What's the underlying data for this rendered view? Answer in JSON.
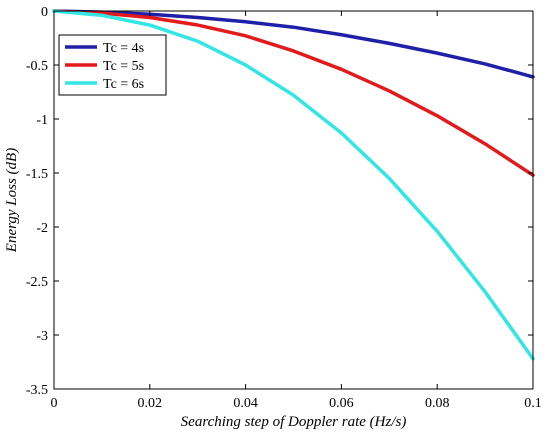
{
  "chart_data": {
    "type": "line",
    "title": "",
    "xlabel": "Searching step of Doppler rate  (Hz/s)",
    "ylabel": "Energy Loss (dB)",
    "xlim": [
      0,
      0.1
    ],
    "ylim": [
      -3.5,
      0
    ],
    "xticks": [
      0,
      0.02,
      0.04,
      0.06,
      0.08,
      0.1
    ],
    "xtick_labels": [
      "0",
      "0.02",
      "0.04",
      "0.06",
      "0.08",
      "0.1"
    ],
    "yticks": [
      0,
      -0.5,
      -1,
      -1.5,
      -2,
      -2.5,
      -3,
      -3.5
    ],
    "ytick_labels": [
      "0",
      "-0.5",
      "-1",
      "-1.5",
      "-2",
      "-2.5",
      "-3",
      "-3.5"
    ],
    "grid": false,
    "legend_position": "top-left",
    "x": [
      0,
      0.01,
      0.02,
      0.03,
      0.04,
      0.05,
      0.06,
      0.07,
      0.08,
      0.09,
      0.1
    ],
    "series": [
      {
        "name": "Tc = 4s",
        "color": "#1f1fa8",
        "values": [
          0,
          -0.01,
          -0.03,
          -0.06,
          -0.1,
          -0.15,
          -0.22,
          -0.3,
          -0.39,
          -0.49,
          -0.61
        ]
      },
      {
        "name": "Tc = 5s",
        "color": "#e31a1c",
        "values": [
          0,
          -0.02,
          -0.06,
          -0.13,
          -0.23,
          -0.37,
          -0.54,
          -0.74,
          -0.97,
          -1.23,
          -1.52
        ]
      },
      {
        "name": "Tc = 6s",
        "color": "#33e6e6",
        "values": [
          0,
          -0.04,
          -0.13,
          -0.28,
          -0.5,
          -0.78,
          -1.13,
          -1.55,
          -2.04,
          -2.6,
          -3.22
        ]
      }
    ]
  }
}
